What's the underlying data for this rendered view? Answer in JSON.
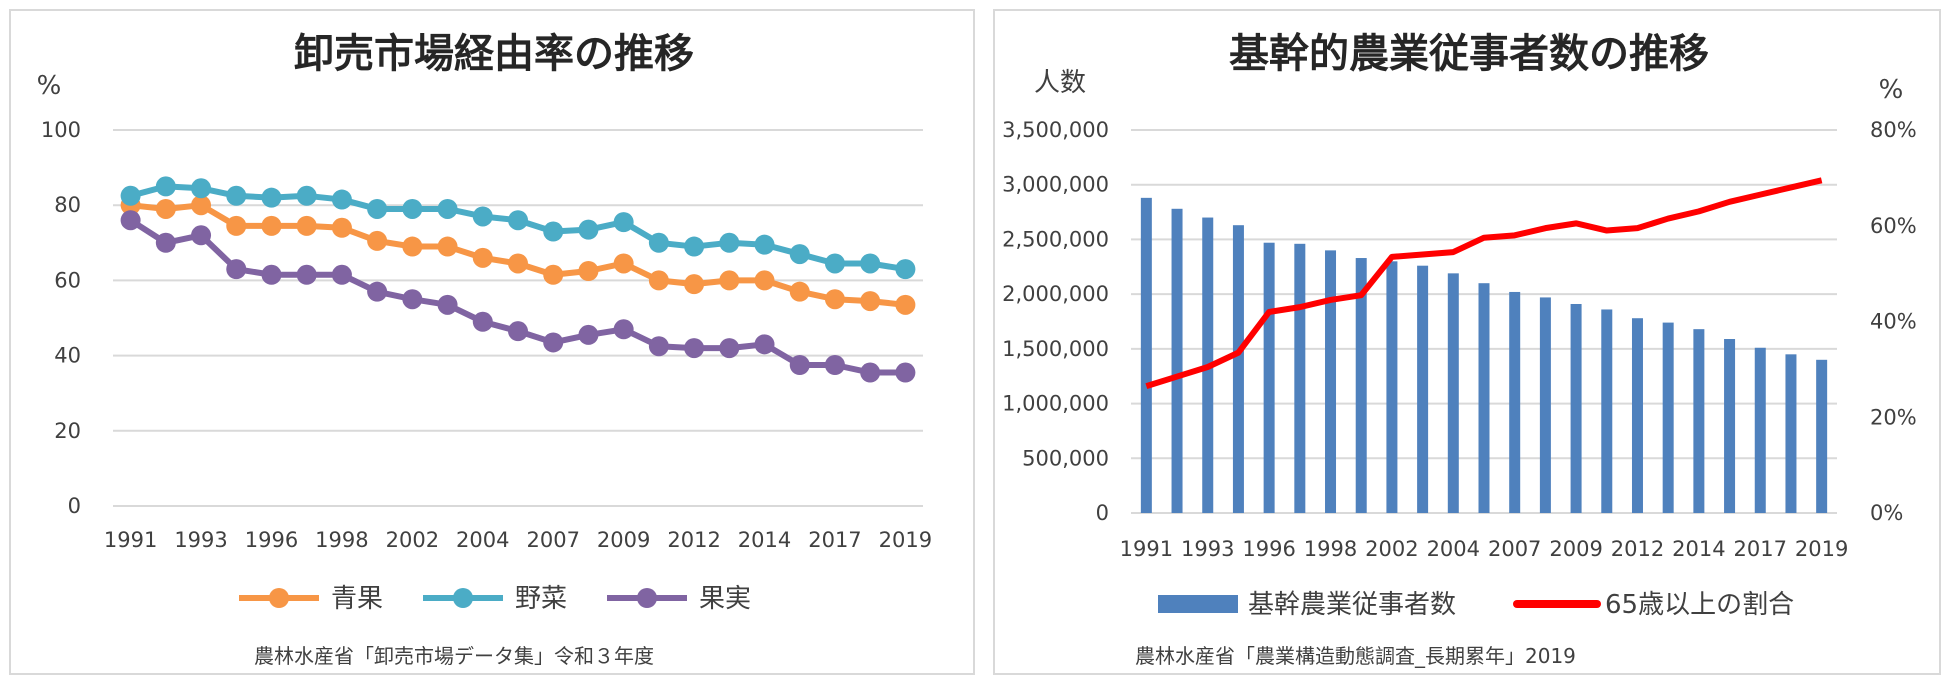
{
  "chart_data": [
    {
      "type": "line",
      "title": "卸売市場経由率の推移",
      "ylabel": "%",
      "ylim": [
        0,
        100
      ],
      "yticks": [
        "0",
        "20",
        "40",
        "60",
        "80",
        "100"
      ],
      "x": [
        "1991",
        "1992",
        "1993",
        "1994",
        "1996",
        "1997",
        "1998",
        "2000",
        "2002",
        "2003",
        "2004",
        "2005",
        "2007",
        "2008",
        "2009",
        "2010",
        "2012",
        "2013",
        "2014",
        "2015",
        "2017",
        "2018",
        "2019"
      ],
      "xtick_labels": [
        "1991",
        "1993",
        "1996",
        "1998",
        "2002",
        "2004",
        "2007",
        "2009",
        "2012",
        "2014",
        "2017",
        "2019"
      ],
      "series": [
        {
          "name": "青果",
          "color": "#f79646",
          "values": [
            80,
            79,
            80,
            74.5,
            74.5,
            74.5,
            74,
            70.5,
            69,
            69,
            66,
            64.5,
            61.5,
            62.5,
            64.5,
            60,
            59,
            60,
            60,
            57,
            55,
            54.5,
            53.5
          ]
        },
        {
          "name": "野菜",
          "color": "#4bacc6",
          "values": [
            82.5,
            85,
            84.5,
            82.5,
            82,
            82.5,
            81.5,
            79,
            79,
            79,
            77,
            76,
            73,
            73.5,
            75.5,
            70,
            69,
            70,
            69.5,
            67,
            64.5,
            64.5,
            63
          ]
        },
        {
          "name": "果実",
          "color": "#8064a2",
          "values": [
            76,
            70,
            72,
            63,
            61.5,
            61.5,
            61.5,
            57,
            55,
            53.5,
            49,
            46.5,
            43.5,
            45.5,
            47,
            42.5,
            42,
            42,
            43,
            37.5,
            37.5,
            35.5,
            35.5
          ]
        }
      ],
      "legend": "bottom",
      "grid": true,
      "source": "農林水産省「卸売市場データ集」令和３年度"
    },
    {
      "type": "bar",
      "title": "基幹的農業従事者数の推移",
      "ylabel": "人数",
      "ylabel_right": "%",
      "ylim": [
        0,
        3500000
      ],
      "y2lim": [
        0,
        80
      ],
      "yticks": [
        "0",
        "500,000",
        "1,000,000",
        "1,500,000",
        "2,000,000",
        "2,500,000",
        "3,000,000",
        "3,500,000"
      ],
      "y2ticks": [
        "0%",
        "20%",
        "40%",
        "60%",
        "80%"
      ],
      "categories": [
        "1991",
        "1992",
        "1993",
        "1994",
        "1996",
        "1997",
        "1998",
        "2000",
        "2002",
        "2003",
        "2004",
        "2005",
        "2007",
        "2008",
        "2009",
        "2010",
        "2012",
        "2013",
        "2014",
        "2015",
        "2017",
        "2018",
        "2019"
      ],
      "xtick_labels": [
        "1991",
        "1993",
        "1996",
        "1998",
        "2002",
        "2004",
        "2007",
        "2009",
        "2012",
        "2014",
        "2017",
        "2019"
      ],
      "series": [
        {
          "name": "基幹農業従事者数",
          "type": "bar",
          "axis": "left",
          "color": "#4f81bd",
          "values": [
            2880000,
            2780000,
            2700000,
            2630000,
            2470000,
            2460000,
            2400000,
            2330000,
            2300000,
            2260000,
            2190000,
            2100000,
            2020000,
            1970000,
            1910000,
            1860000,
            1780000,
            1740000,
            1680000,
            1590000,
            1510000,
            1450000,
            1400000
          ]
        },
        {
          "name": "65歳以上の割合",
          "type": "line",
          "axis": "right",
          "color": "#ff0000",
          "values": [
            26.5,
            28.5,
            30.5,
            33.5,
            42,
            43,
            44.5,
            45.5,
            53.5,
            54,
            54.5,
            57.5,
            58,
            59.5,
            60.5,
            59,
            59.5,
            61.5,
            63,
            65,
            66.5,
            68,
            69.5
          ]
        }
      ],
      "legend": "bottom",
      "grid": true,
      "source": "農林水産省「農業構造動態調査_長期累年」2019"
    }
  ]
}
